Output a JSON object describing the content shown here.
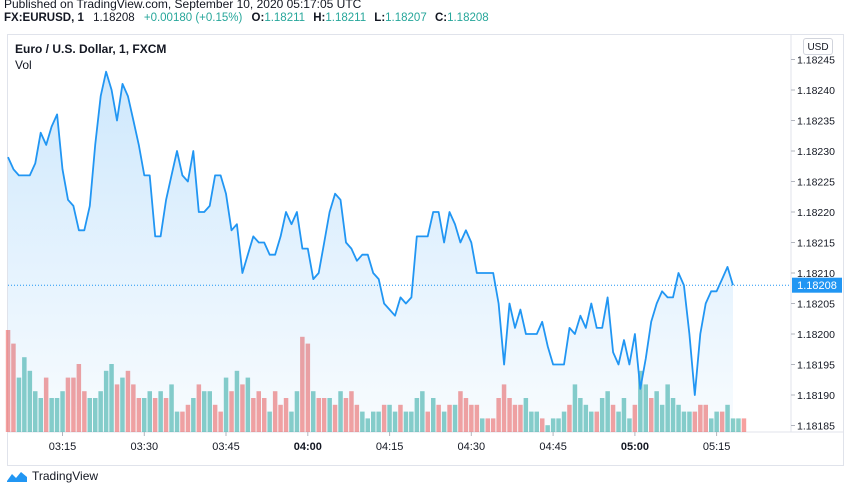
{
  "header": {
    "published": "Published on TradingView.com, September 10, 2020 05:17:05 UTC",
    "symbol": "FX:EURUSD, 1",
    "close": "1.18208",
    "change": "+0.00180 (+0.15%)",
    "o_label": "O:",
    "o_value": "1.18211",
    "h_label": "H:",
    "h_value": "1.18211",
    "l_label": "L:",
    "l_value": "1.18207",
    "c_label": "C:",
    "c_value": "1.18208"
  },
  "legend": {
    "title": "Euro / U.S. Dollar, 1, FXCM",
    "vol": "Vol"
  },
  "currency_button": "USD",
  "footer": {
    "brand": "TradingView"
  },
  "colors": {
    "line": "#2196f3",
    "up": "#26a69a",
    "down": "#ef5350",
    "price_tag": "#2196f3"
  },
  "chart_data": {
    "type": "area",
    "title": "Euro / U.S. Dollar, 1, FXCM",
    "x_ticks": [
      "03:15",
      "03:30",
      "03:45",
      "04:00",
      "04:15",
      "04:30",
      "04:45",
      "05:00",
      "05:15"
    ],
    "x_tick_bold": [
      false,
      false,
      false,
      true,
      false,
      false,
      false,
      true,
      false
    ],
    "y_ticks": [
      "1.18185",
      "1.18190",
      "1.18195",
      "1.18200",
      "1.18205",
      "1.18210",
      "1.18215",
      "1.18220",
      "1.18225",
      "1.18230",
      "1.18235",
      "1.18240",
      "1.18245"
    ],
    "ylim": [
      1.18185,
      1.18245
    ],
    "last_price": 1.18208,
    "last_price_label": "1.18208",
    "grid": false,
    "series": [
      {
        "values": [
          1.18229,
          1.18227,
          1.18226,
          1.18226,
          1.18226,
          1.18228,
          1.18233,
          1.18231,
          1.18234,
          1.18236,
          1.18227,
          1.18222,
          1.18221,
          1.18217,
          1.18217,
          1.18221,
          1.18231,
          1.18239,
          1.18243,
          1.1824,
          1.18235,
          1.18241,
          1.18239,
          1.18235,
          1.18231,
          1.18226,
          1.18226,
          1.18216,
          1.18216,
          1.18222,
          1.18226,
          1.1823,
          1.18226,
          1.18225,
          1.1823,
          1.1822,
          1.1822,
          1.18221,
          1.18226,
          1.18226,
          1.18223,
          1.18217,
          1.18218,
          1.1821,
          1.18213,
          1.18216,
          1.18215,
          1.18215,
          1.18213,
          1.18213,
          1.18216,
          1.1822,
          1.18218,
          1.1822,
          1.18214,
          1.18214,
          1.18209,
          1.1821,
          1.18215,
          1.1822,
          1.18223,
          1.18222,
          1.18215,
          1.18214,
          1.18212,
          1.18213,
          1.18213,
          1.1821,
          1.18209,
          1.18205,
          1.18204,
          1.18203,
          1.18206,
          1.18205,
          1.18206,
          1.18216,
          1.18216,
          1.18216,
          1.1822,
          1.1822,
          1.18215,
          1.1822,
          1.18218,
          1.18215,
          1.18217,
          1.18215,
          1.1821,
          1.1821,
          1.1821,
          1.1821,
          1.18205,
          1.18195,
          1.18205,
          1.18201,
          1.18204,
          1.182,
          1.182,
          1.182,
          1.18202,
          1.18198,
          1.18195,
          1.18195,
          1.18195,
          1.18201,
          1.182,
          1.18203,
          1.18201,
          1.18205,
          1.18201,
          1.18201,
          1.18206,
          1.18197,
          1.18195,
          1.18199,
          1.18195,
          1.182,
          1.18191,
          1.18196,
          1.18202,
          1.18205,
          1.18207,
          1.18206,
          1.18206,
          1.1821,
          1.18208,
          1.182,
          1.1819,
          1.182,
          1.18205,
          1.18207,
          1.18207,
          1.18209,
          1.18211,
          1.18208
        ]
      },
      {
        "name": "Vol",
        "values": [
          15,
          13,
          8,
          11,
          9,
          6,
          5,
          8,
          5,
          5,
          6,
          8,
          8,
          10,
          6,
          5,
          5,
          6,
          9,
          10,
          7,
          8,
          9,
          7,
          5,
          5,
          6,
          5,
          6,
          5,
          7,
          3,
          3,
          4,
          5,
          7,
          6,
          6,
          4,
          3,
          8,
          6,
          9,
          7,
          8,
          5,
          6,
          5,
          3,
          6,
          4,
          5,
          3,
          6,
          14,
          13,
          6,
          5,
          5,
          5,
          4,
          6,
          5,
          6,
          4,
          3,
          2,
          3,
          3,
          4,
          4,
          3,
          4,
          3,
          3,
          5,
          6,
          3,
          5,
          4,
          3,
          4,
          4,
          6,
          5,
          4,
          4,
          2,
          2,
          2,
          5,
          7,
          5,
          4,
          4,
          5,
          3,
          3,
          2,
          1,
          2,
          2,
          3,
          4,
          7,
          5,
          4,
          3,
          3,
          5,
          6,
          4,
          3,
          5,
          2,
          4,
          9,
          7,
          5,
          6,
          4,
          7,
          5,
          4,
          3,
          3,
          3,
          4,
          4,
          2,
          3,
          3,
          4,
          2,
          2,
          2
        ],
        "up": [
          0,
          0,
          1,
          1,
          1,
          1,
          1,
          0,
          1,
          1,
          1,
          0,
          0,
          0,
          0,
          1,
          1,
          1,
          1,
          1,
          0,
          1,
          0,
          0,
          0,
          1,
          1,
          0,
          1,
          0,
          1,
          1,
          0,
          0,
          1,
          0,
          1,
          1,
          0,
          0,
          1,
          0,
          1,
          0,
          1,
          0,
          0,
          0,
          1,
          0,
          0,
          0,
          1,
          1,
          0,
          0,
          1,
          0,
          0,
          1,
          0,
          1,
          0,
          0,
          0,
          1,
          1,
          1,
          1,
          0,
          1,
          1,
          0,
          1,
          1,
          1,
          1,
          0,
          1,
          0,
          1,
          0,
          1,
          0,
          0,
          0,
          0,
          1,
          0,
          0,
          0,
          0,
          0,
          0,
          0,
          1,
          1,
          1,
          0,
          1,
          1,
          1,
          1,
          0,
          1,
          1,
          1,
          1,
          0,
          1,
          1,
          0,
          1,
          1,
          1,
          0,
          1,
          1,
          0,
          1,
          1,
          1,
          1,
          1,
          1,
          1,
          0,
          0,
          0,
          1,
          1,
          0,
          1,
          1,
          1,
          0
        ]
      }
    ]
  }
}
